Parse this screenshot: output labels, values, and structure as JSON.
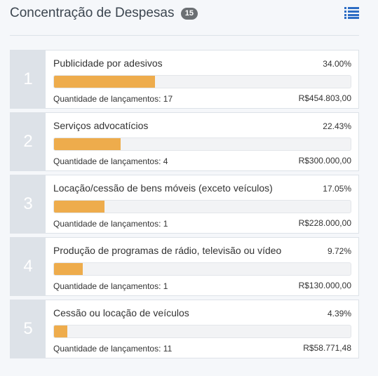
{
  "header": {
    "title": "Concentração de Despesas",
    "count": "15",
    "icon": "list-view-icon",
    "accent_color": "#2d6dc4"
  },
  "bar_color": "#eeac4c",
  "quantity_label": "Quantidade de lançamentos:",
  "items": [
    {
      "rank": "1",
      "label": "Publicidade por adesivos",
      "percent_text": "34.00%",
      "percent": 34.0,
      "quantity": "17",
      "value": "R$454.803,00"
    },
    {
      "rank": "2",
      "label": "Serviços advocatícios",
      "percent_text": "22.43%",
      "percent": 22.43,
      "quantity": "4",
      "value": "R$300.000,00"
    },
    {
      "rank": "3",
      "label": "Locação/cessão de bens móveis (exceto veículos)",
      "percent_text": "17.05%",
      "percent": 17.05,
      "quantity": "1",
      "value": "R$228.000,00"
    },
    {
      "rank": "4",
      "label": "Produção de programas de rádio, televisão ou vídeo",
      "percent_text": "9.72%",
      "percent": 9.72,
      "quantity": "1",
      "value": "R$130.000,00"
    },
    {
      "rank": "5",
      "label": "Cessão ou locação de veículos",
      "percent_text": "4.39%",
      "percent": 4.39,
      "quantity": "11",
      "value": "R$58.771,48"
    }
  ]
}
